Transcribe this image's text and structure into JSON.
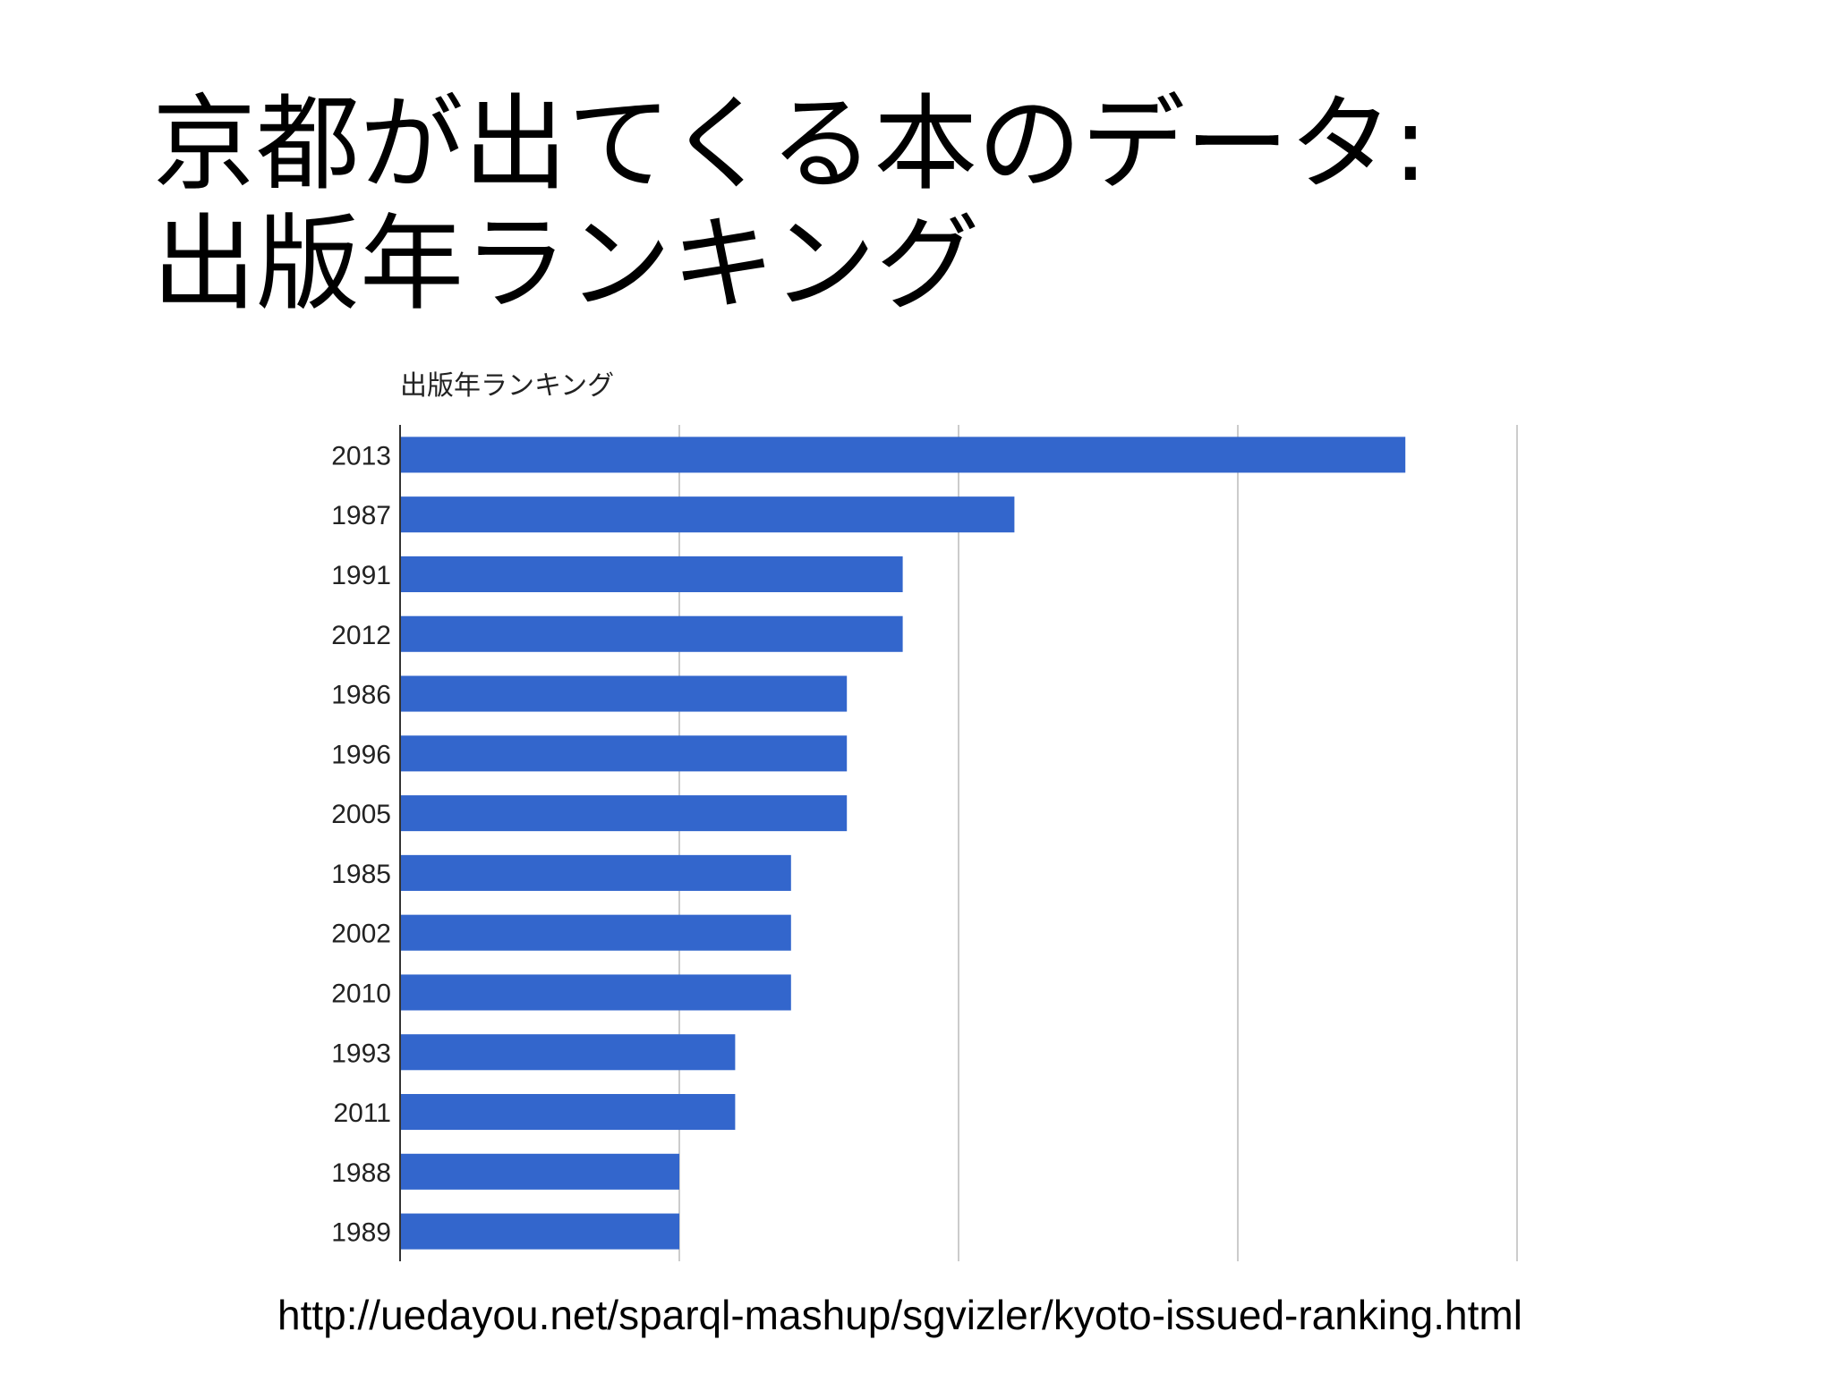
{
  "slide": {
    "title_line1": "京都が出てくる本のデータ:",
    "title_line2": "出版年ランキング",
    "source_url": "http://uedayou.net/sparql-mashup/sgvizler/kyoto-issued-ranking.html"
  },
  "chart_data": {
    "type": "bar",
    "orientation": "horizontal",
    "title": "出版年ランキング",
    "categories": [
      "2013",
      "1987",
      "1991",
      "2012",
      "1986",
      "1996",
      "2005",
      "1985",
      "2002",
      "2010",
      "1993",
      "2011",
      "1988",
      "1989"
    ],
    "values": [
      18,
      11,
      9,
      9,
      8,
      8,
      8,
      7,
      7,
      7,
      6,
      6,
      5,
      5
    ],
    "xlim": [
      0,
      20
    ],
    "gridlines": [
      0,
      5,
      10,
      15,
      20
    ],
    "grid": true,
    "bar_color": "#3366cc",
    "grid_color": "#cccccc"
  }
}
